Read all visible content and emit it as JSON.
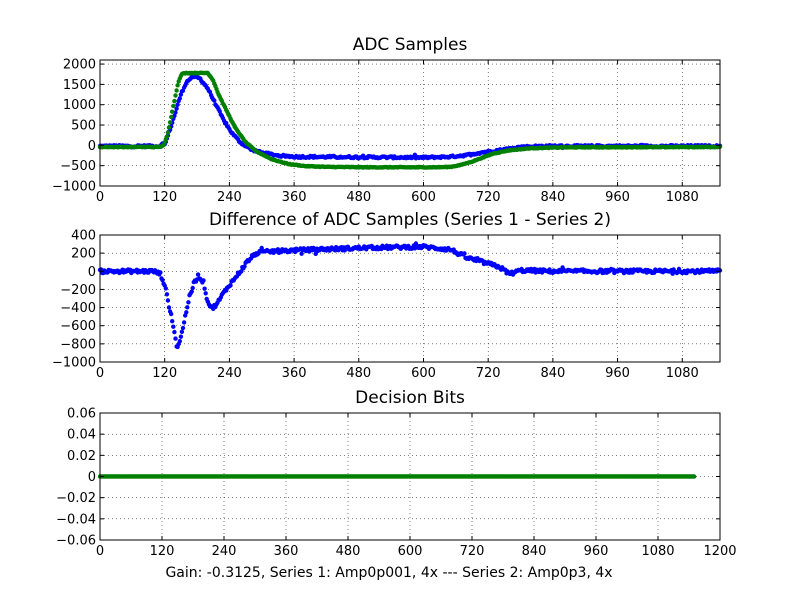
{
  "figure": {
    "footer": "Gain: -0.3125, Series 1: Amp0p001, 4x --- Series 2: Amp0p3, 4x"
  },
  "chart_data": [
    {
      "type": "scatter",
      "title": "ADC Samples",
      "xlabel": "",
      "ylabel": "",
      "xlim": [
        0,
        1150
      ],
      "ylim": [
        -1000,
        2100
      ],
      "xticks": [
        0,
        120,
        240,
        360,
        480,
        600,
        720,
        840,
        960,
        1080
      ],
      "yticks": [
        -1000,
        -500,
        0,
        500,
        1000,
        1500,
        2000
      ],
      "grid": true,
      "legend": "none",
      "series": [
        {
          "color": "#0000ff",
          "marker": "dot",
          "profile": [
            [
              0,
              -20
            ],
            [
              110,
              -20
            ],
            [
              122,
              80
            ],
            [
              135,
              600
            ],
            [
              150,
              1250
            ],
            [
              160,
              1550
            ],
            [
              172,
              1700
            ],
            [
              185,
              1650
            ],
            [
              200,
              1400
            ],
            [
              215,
              1000
            ],
            [
              230,
              600
            ],
            [
              245,
              300
            ],
            [
              260,
              80
            ],
            [
              280,
              -100
            ],
            [
              300,
              -180
            ],
            [
              330,
              -250
            ],
            [
              360,
              -280
            ],
            [
              480,
              -290
            ],
            [
              600,
              -300
            ],
            [
              650,
              -280
            ],
            [
              680,
              -240
            ],
            [
              710,
              -170
            ],
            [
              740,
              -120
            ],
            [
              760,
              -80
            ],
            [
              780,
              -40
            ],
            [
              820,
              -20
            ],
            [
              900,
              -20
            ],
            [
              1150,
              -20
            ]
          ],
          "noise": 25
        },
        {
          "color": "#008000",
          "marker": "dot",
          "profile": [
            [
              0,
              -40
            ],
            [
              110,
              -40
            ],
            [
              118,
              0
            ],
            [
              125,
              250
            ],
            [
              135,
              900
            ],
            [
              145,
              1550
            ],
            [
              152,
              1760
            ],
            [
              160,
              1780
            ],
            [
              200,
              1780
            ],
            [
              210,
              1600
            ],
            [
              220,
              1250
            ],
            [
              235,
              850
            ],
            [
              250,
              450
            ],
            [
              270,
              80
            ],
            [
              290,
              -150
            ],
            [
              320,
              -350
            ],
            [
              350,
              -460
            ],
            [
              380,
              -510
            ],
            [
              420,
              -530
            ],
            [
              500,
              -540
            ],
            [
              620,
              -540
            ],
            [
              650,
              -530
            ],
            [
              670,
              -480
            ],
            [
              690,
              -400
            ],
            [
              710,
              -300
            ],
            [
              730,
              -200
            ],
            [
              760,
              -120
            ],
            [
              800,
              -70
            ],
            [
              860,
              -50
            ],
            [
              1150,
              -40
            ]
          ],
          "noise": 8
        }
      ]
    },
    {
      "type": "scatter",
      "title": "Difference of ADC Samples (Series 1 - Series 2)",
      "xlabel": "",
      "ylabel": "",
      "xlim": [
        0,
        1150
      ],
      "ylim": [
        -1000,
        400
      ],
      "xticks": [
        0,
        120,
        240,
        360,
        480,
        600,
        720,
        840,
        960,
        1080
      ],
      "yticks": [
        -1000,
        -800,
        -600,
        -400,
        -200,
        0,
        200,
        400
      ],
      "grid": true,
      "legend": "none",
      "series": [
        {
          "color": "#0000ff",
          "marker": "dot",
          "profile": [
            [
              0,
              0
            ],
            [
              100,
              0
            ],
            [
              112,
              -30
            ],
            [
              120,
              -150
            ],
            [
              128,
              -380
            ],
            [
              136,
              -600
            ],
            [
              143,
              -850
            ],
            [
              150,
              -730
            ],
            [
              158,
              -500
            ],
            [
              165,
              -300
            ],
            [
              175,
              -130
            ],
            [
              182,
              -50
            ],
            [
              192,
              -120
            ],
            [
              200,
              -340
            ],
            [
              208,
              -410
            ],
            [
              218,
              -350
            ],
            [
              228,
              -250
            ],
            [
              240,
              -150
            ],
            [
              250,
              -80
            ],
            [
              260,
              0
            ],
            [
              275,
              120
            ],
            [
              290,
              200
            ],
            [
              320,
              220
            ],
            [
              400,
              240
            ],
            [
              500,
              260
            ],
            [
              600,
              270
            ],
            [
              650,
              240
            ],
            [
              680,
              150
            ],
            [
              710,
              100
            ],
            [
              740,
              50
            ],
            [
              760,
              -30
            ],
            [
              780,
              10
            ],
            [
              840,
              0
            ],
            [
              1150,
              0
            ]
          ],
          "noise": 20
        }
      ]
    },
    {
      "type": "scatter",
      "title": "Decision Bits",
      "xlabel": "Gain: -0.3125, Series 1: Amp0p001, 4x --- Series 2: Amp0p3, 4x",
      "ylabel": "",
      "xlim": [
        0,
        1200
      ],
      "ylim": [
        -0.06,
        0.06
      ],
      "xticks": [
        0,
        120,
        240,
        360,
        480,
        600,
        720,
        840,
        960,
        1080,
        1200
      ],
      "yticks": [
        -0.06,
        -0.04,
        -0.02,
        0.0,
        0.02,
        0.04,
        0.06
      ],
      "grid": true,
      "legend": "none",
      "series": [
        {
          "color": "#008000",
          "marker": "dot",
          "profile": [
            [
              0,
              0
            ],
            [
              1150,
              0
            ]
          ],
          "noise": 0
        }
      ]
    }
  ]
}
